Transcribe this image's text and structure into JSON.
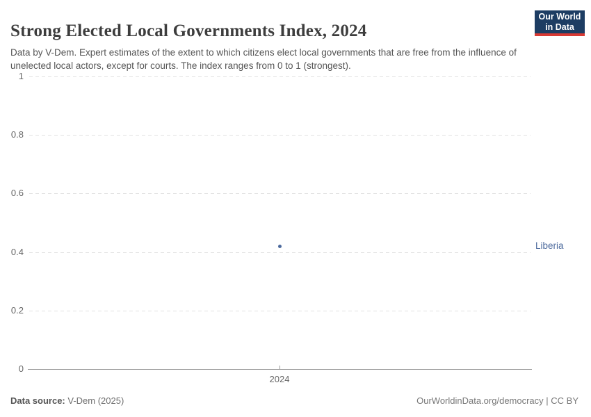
{
  "header": {
    "title": "Strong Elected Local Governments Index, 2024",
    "subtitle": "Data by V-Dem. Expert estimates of the extent to which citizens elect local governments that are free from the influence of unelected local actors, except for courts. The index ranges from 0 to 1 (strongest).",
    "logo": {
      "line1": "Our World",
      "line2": "in Data",
      "bg_color": "#1d3d63",
      "stripe_color": "#d93a34"
    }
  },
  "chart_data": {
    "type": "scatter",
    "title": "Strong Elected Local Governments Index, 2024",
    "x": [
      2024
    ],
    "series": [
      {
        "name": "Liberia",
        "values": [
          0.42
        ]
      }
    ],
    "ylim": [
      0,
      1
    ],
    "yticks": [
      0,
      0.2,
      0.4,
      0.6,
      0.8,
      1
    ],
    "ytick_labels": [
      "0",
      "0.2",
      "0.4",
      "0.6",
      "0.8",
      "1"
    ],
    "xtick_labels": [
      "2024"
    ],
    "grid": "horizontal-dashed",
    "legend_position": "entity-label-right",
    "point_color": "#4c6a9d",
    "entity_label_color": "#4c6a9d"
  },
  "footer": {
    "source_label": "Data source:",
    "source_value": " V-Dem (2025)",
    "credit": "OurWorldinData.org/democracy | CC BY"
  }
}
